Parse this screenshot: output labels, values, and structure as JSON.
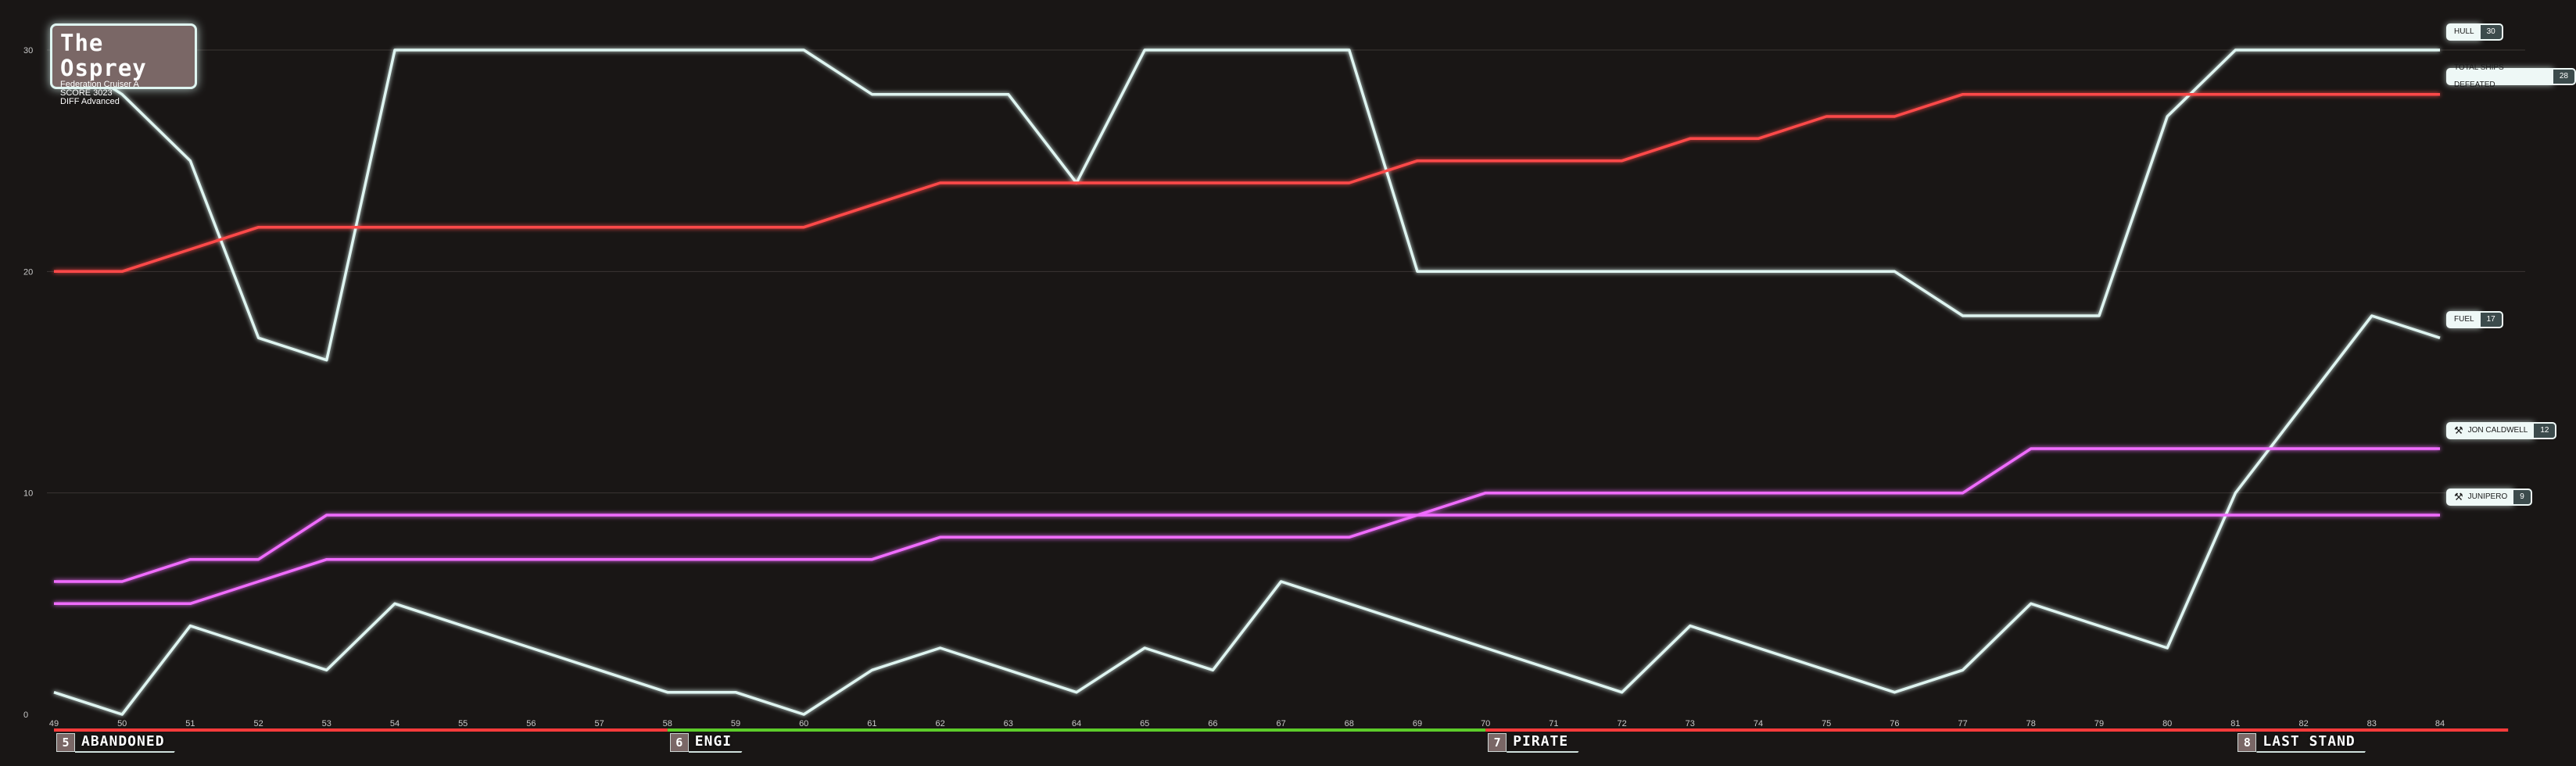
{
  "card": {
    "title": "The Osprey",
    "line1": "Federation Cruiser A",
    "line2": "SCORE 3023",
    "line3": "DIFF Advanced"
  },
  "chart_data": {
    "type": "line",
    "x": [
      49,
      50,
      51,
      52,
      53,
      54,
      55,
      56,
      57,
      58,
      59,
      60,
      61,
      62,
      63,
      64,
      65,
      66,
      67,
      68,
      69,
      70,
      71,
      72,
      73,
      74,
      75,
      76,
      77,
      78,
      79,
      80,
      81,
      82,
      83,
      84
    ],
    "ylim": [
      0,
      30
    ],
    "yticks": [
      0,
      10,
      20,
      30
    ],
    "grid": true,
    "series": [
      {
        "name": "HULL",
        "color": "#dff5f1",
        "values": [
          30,
          28,
          25,
          17,
          16,
          30,
          30,
          30,
          30,
          30,
          30,
          30,
          28,
          28,
          28,
          24,
          30,
          30,
          30,
          30,
          20,
          20,
          20,
          20,
          20,
          20,
          20,
          20,
          18,
          18,
          18,
          27,
          30,
          30,
          30,
          30
        ],
        "label_value": "30",
        "icon": ""
      },
      {
        "name": "TOTAL SHIPS DEFEATED",
        "color": "#ff4a4a",
        "values": [
          20,
          20,
          21,
          22,
          22,
          22,
          22,
          22,
          22,
          22,
          22,
          22,
          23,
          24,
          24,
          24,
          24,
          24,
          24,
          24,
          25,
          25,
          25,
          25,
          26,
          26,
          27,
          27,
          28,
          28,
          28,
          28,
          28,
          28,
          28,
          28
        ],
        "label_value": "28",
        "icon": ""
      },
      {
        "name": "FUEL",
        "color": "#dff5f1",
        "values": [
          1,
          0,
          4,
          3,
          2,
          5,
          4,
          3,
          2,
          1,
          1,
          0,
          2,
          3,
          2,
          1,
          3,
          2,
          6,
          5,
          4,
          3,
          2,
          1,
          4,
          3,
          2,
          1,
          2,
          5,
          4,
          3,
          10,
          14,
          18,
          17
        ],
        "label_value": "17",
        "icon": ""
      },
      {
        "name": "JON CALDWELL",
        "color": "#f06cff",
        "values": [
          6,
          6,
          7,
          7,
          9,
          9,
          9,
          9,
          9,
          9,
          9,
          9,
          9,
          9,
          9,
          9,
          9,
          9,
          9,
          9,
          9,
          10,
          10,
          10,
          10,
          10,
          10,
          10,
          10,
          12,
          12,
          12,
          12,
          12,
          12,
          12
        ],
        "label_value": "12",
        "icon": "wrench-icon"
      },
      {
        "name": "JUNIPERO",
        "color": "#f06cff",
        "values": [
          5,
          5,
          5,
          6,
          7,
          7,
          7,
          7,
          7,
          7,
          7,
          7,
          7,
          8,
          8,
          8,
          8,
          8,
          8,
          8,
          9,
          9,
          9,
          9,
          9,
          9,
          9,
          9,
          9,
          9,
          9,
          9,
          9,
          9,
          9,
          9
        ],
        "label_value": "9",
        "icon": "wrench-icon"
      }
    ],
    "sectors": [
      {
        "number": "5",
        "name": "ABANDONED",
        "start": 49,
        "end": 58,
        "color": "#ff3b3b"
      },
      {
        "number": "6",
        "name": "ENGI",
        "start": 58,
        "end": 70,
        "color": "#5dcc2a"
      },
      {
        "number": "7",
        "name": "PIRATE",
        "start": 70,
        "end": 81,
        "color": "#ff3b3b"
      },
      {
        "number": "8",
        "name": "LAST STAND",
        "start": 81,
        "end": 85,
        "color": "#ff3b3b"
      }
    ]
  }
}
